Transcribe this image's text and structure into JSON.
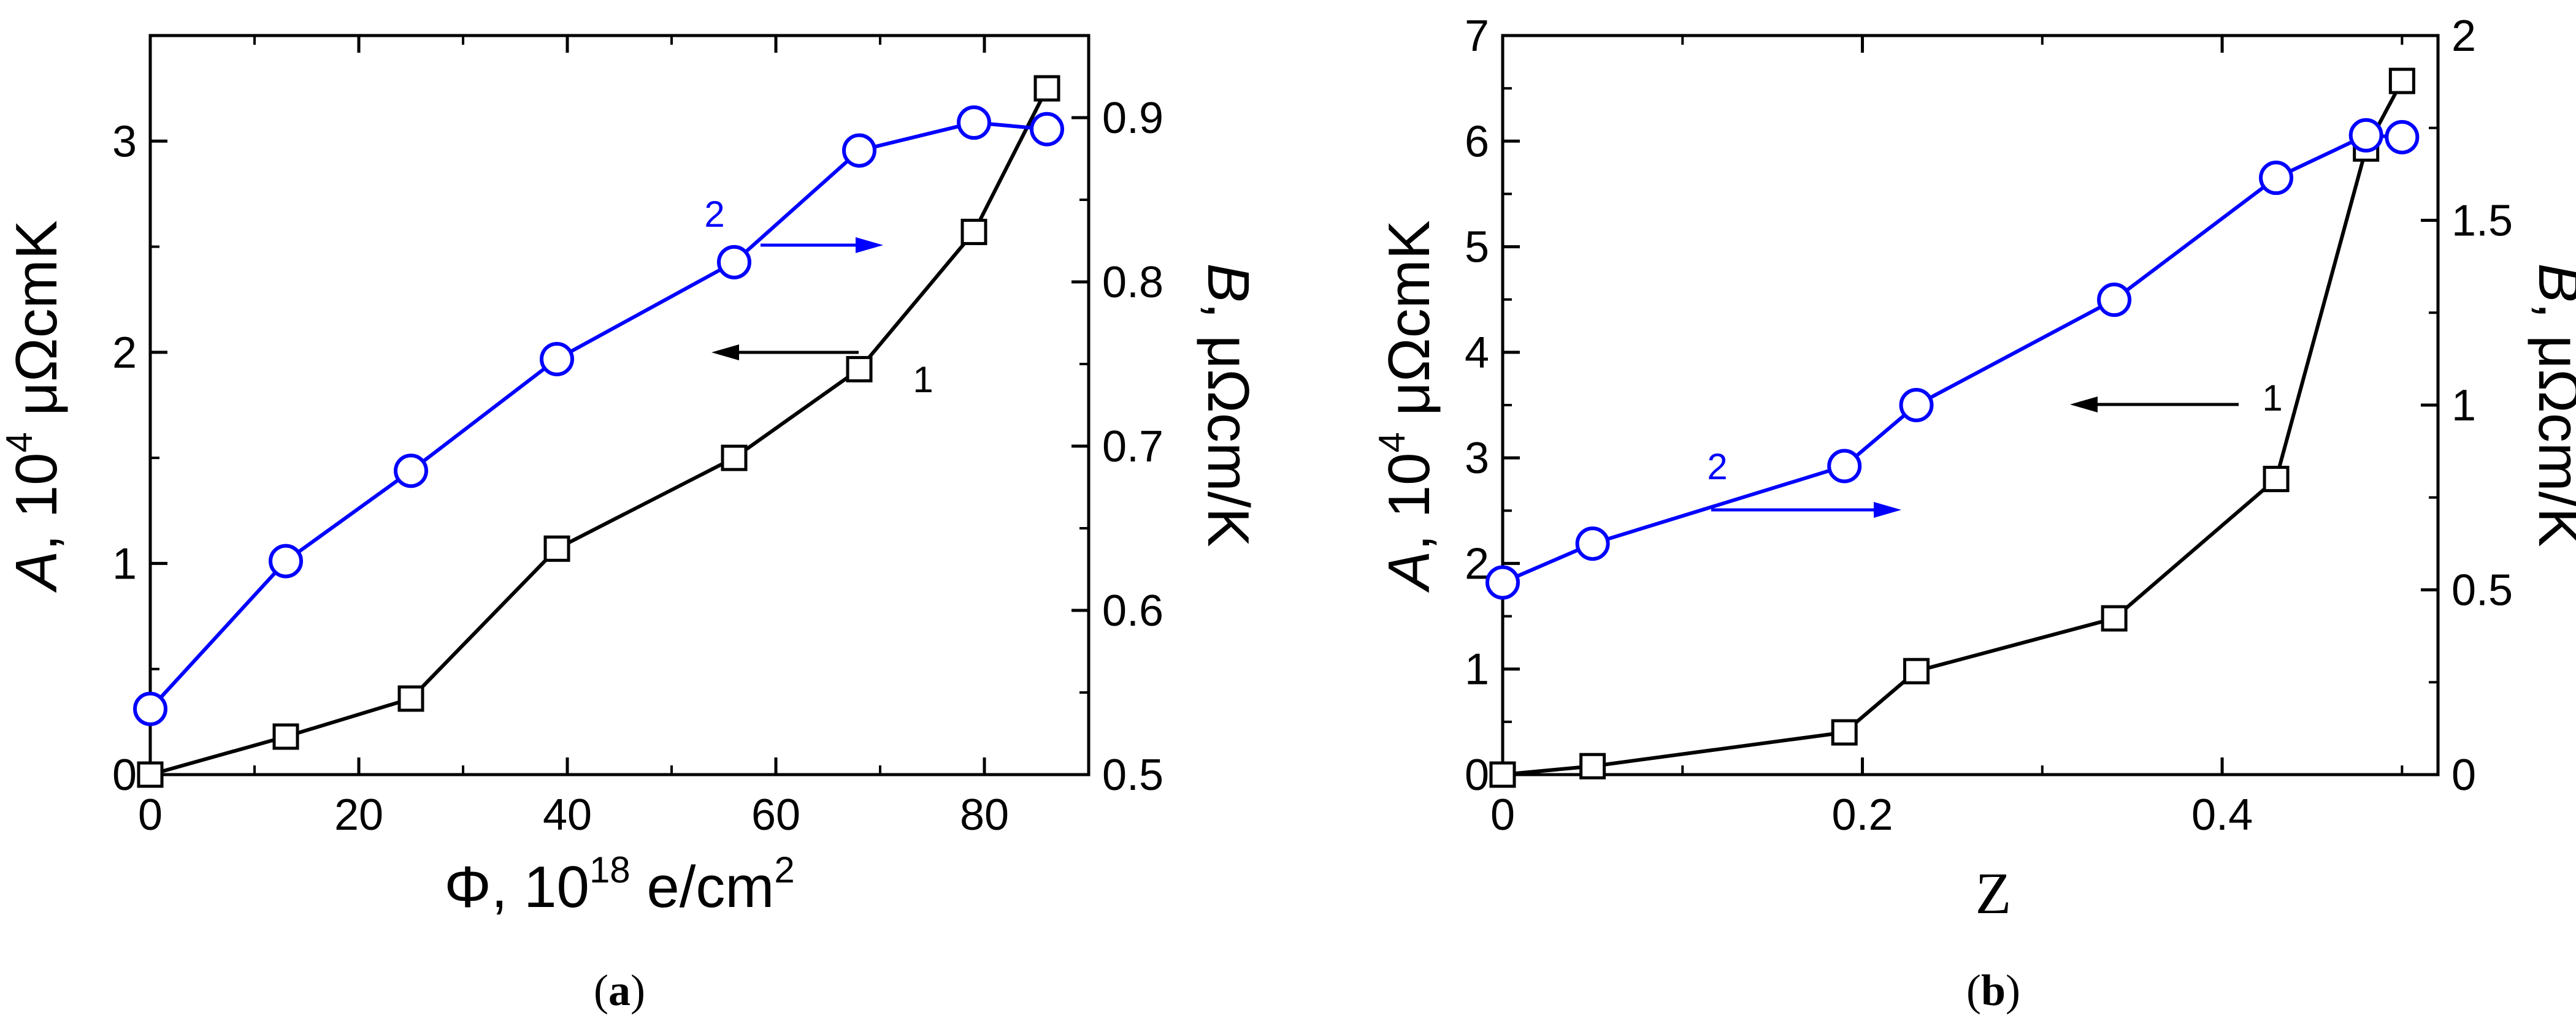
{
  "colors": {
    "series1": "#000000",
    "series2": "#0000ff",
    "axis": "#000000",
    "background": "#ffffff"
  },
  "chart_data": [
    {
      "type": "line",
      "panel": "a",
      "caption": "(a)",
      "caption_letter": "a",
      "xlabel": "Φ, 10",
      "xlabel_sup": "18",
      "xlabel_tail": " e/cm",
      "xlabel_sup2": "2",
      "ylabel_left_var": "A",
      "ylabel_left_mid": ", 10",
      "ylabel_left_sup": "4",
      "ylabel_left_unit": " μΩcmK",
      "ylabel_right_var": "B",
      "ylabel_right_unit": ", μΩcm/K",
      "xlim": [
        0,
        90
      ],
      "ylim_left": [
        0,
        3.5
      ],
      "ylim_right": [
        0.5,
        0.95
      ],
      "xticks": [
        0,
        20,
        40,
        60,
        80
      ],
      "xtick_labels": [
        "0",
        "20",
        "40",
        "60",
        "80"
      ],
      "yticks_left": [
        0,
        1,
        2,
        3
      ],
      "ytick_left_labels": [
        "0",
        "1",
        "2",
        "3"
      ],
      "yticks_right": [
        0.5,
        0.6,
        0.7,
        0.8,
        0.9
      ],
      "ytick_right_labels": [
        "0.5",
        "0.6",
        "0.7",
        "0.8",
        "0.9"
      ],
      "series": [
        {
          "name": "1",
          "axis": "left",
          "marker": "square",
          "color": "#000000",
          "x": [
            0,
            13,
            25,
            39,
            56,
            68,
            79,
            86
          ],
          "y": [
            0.0,
            0.18,
            0.36,
            1.07,
            1.5,
            1.92,
            2.57,
            3.25
          ]
        },
        {
          "name": "2",
          "axis": "right",
          "marker": "circle",
          "color": "#0000ff",
          "x": [
            0,
            13,
            25,
            39,
            56,
            68,
            79,
            86
          ],
          "y": [
            0.54,
            0.63,
            0.685,
            0.753,
            0.812,
            0.88,
            0.897,
            0.893
          ]
        }
      ],
      "annotations": [
        {
          "text": "1",
          "series": 0,
          "arrow_dir": "left"
        },
        {
          "text": "2",
          "series": 1,
          "arrow_dir": "right"
        }
      ]
    },
    {
      "type": "line",
      "panel": "b",
      "caption": "(b)",
      "caption_letter": "b",
      "xlabel": "Z",
      "ylabel_left_var": "A",
      "ylabel_left_mid": ", 10",
      "ylabel_left_sup": "4",
      "ylabel_left_unit": " μΩcmK",
      "ylabel_right_var": "B",
      "ylabel_right_unit": ", μΩcm/K",
      "xlim": [
        0,
        0.52
      ],
      "ylim_left": [
        0,
        7
      ],
      "ylim_right": [
        0,
        2
      ],
      "xticks": [
        0,
        0.2,
        0.4
      ],
      "xtick_labels": [
        "0",
        "0.2",
        "0.4"
      ],
      "yticks_left": [
        0,
        1,
        2,
        3,
        4,
        5,
        6,
        7
      ],
      "ytick_left_labels": [
        "0",
        "1",
        "2",
        "3",
        "4",
        "5",
        "6",
        "7"
      ],
      "yticks_right": [
        0,
        0.5,
        1,
        1.5,
        2
      ],
      "ytick_right_labels": [
        "0",
        "0.5",
        "1",
        "1.5",
        "2"
      ],
      "series": [
        {
          "name": "1",
          "axis": "left",
          "marker": "square",
          "color": "#000000",
          "x": [
            0,
            0.05,
            0.19,
            0.23,
            0.34,
            0.43,
            0.48,
            0.5
          ],
          "y": [
            0.0,
            0.08,
            0.4,
            0.98,
            1.48,
            2.8,
            5.93,
            6.57
          ]
        },
        {
          "name": "2",
          "axis": "right",
          "marker": "circle",
          "color": "#0000ff",
          "x": [
            0,
            0.05,
            0.19,
            0.23,
            0.34,
            0.43,
            0.48,
            0.5
          ],
          "y": [
            0.52,
            0.625,
            0.835,
            1.0,
            1.285,
            1.615,
            1.73,
            1.725
          ]
        }
      ],
      "annotations": [
        {
          "text": "1",
          "series": 0,
          "arrow_dir": "left"
        },
        {
          "text": "2",
          "series": 1,
          "arrow_dir": "right"
        }
      ]
    }
  ]
}
